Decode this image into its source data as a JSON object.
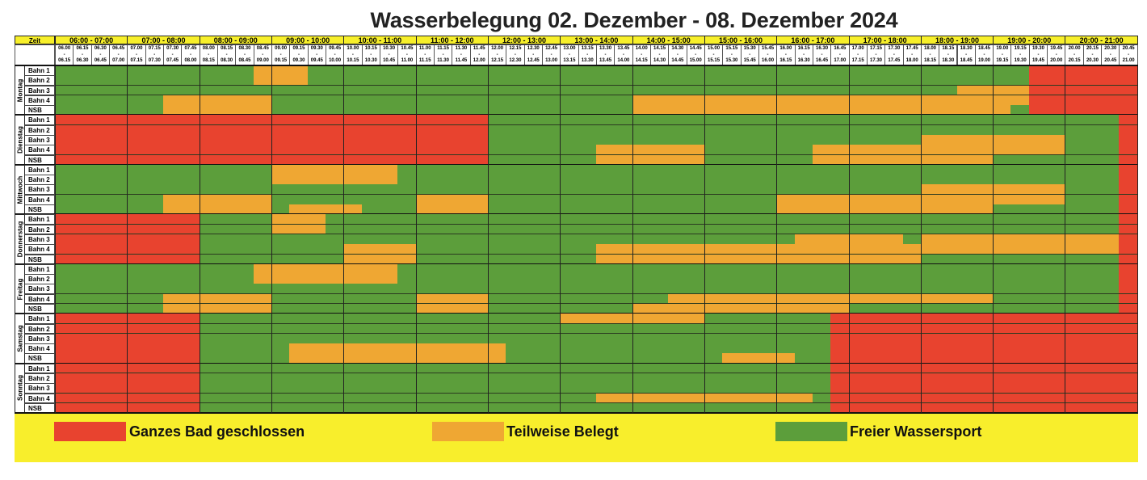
{
  "title": "Wasserbelegung 02. Dezember - 08. Dezember 2024",
  "header": {
    "zeit_label": "Zeit",
    "hours": [
      "06:00 - 07:00",
      "07:00 - 08:00",
      "08:00 - 09:00",
      "09:00 - 10:00",
      "10:00 - 11:00",
      "11:00 - 12:00",
      "12:00 - 13:00",
      "13:00 - 14:00",
      "14:00 - 15:00",
      "15:00 - 16:00",
      "16:00 - 17:00",
      "17:00 - 18:00",
      "18:00 - 19:00",
      "19:00 - 20:00",
      "20:00 - 21:00"
    ],
    "quarters": [
      [
        "06.00",
        "06.15"
      ],
      [
        "06.15",
        "06.30"
      ],
      [
        "06.30",
        "06.45"
      ],
      [
        "06.45",
        "07.00"
      ],
      [
        "07.00",
        "07.15"
      ],
      [
        "07.15",
        "07.30"
      ],
      [
        "07.30",
        "07.45"
      ],
      [
        "07.45",
        "08.00"
      ],
      [
        "08.00",
        "08.15"
      ],
      [
        "08.15",
        "08.30"
      ],
      [
        "08.30",
        "08.45"
      ],
      [
        "08.45",
        "09.00"
      ],
      [
        "09.00",
        "09.15"
      ],
      [
        "09.15",
        "09.30"
      ],
      [
        "09.30",
        "09.45"
      ],
      [
        "09.45",
        "10.00"
      ],
      [
        "10.00",
        "10.15"
      ],
      [
        "10.15",
        "10.30"
      ],
      [
        "10.30",
        "10.45"
      ],
      [
        "10.45",
        "11.00"
      ],
      [
        "11.00",
        "11.15"
      ],
      [
        "11.15",
        "11.30"
      ],
      [
        "11.30",
        "11.45"
      ],
      [
        "11.45",
        "12.00"
      ],
      [
        "12.00",
        "12.15"
      ],
      [
        "12.15",
        "12.30"
      ],
      [
        "12.30",
        "12.45"
      ],
      [
        "12.45",
        "13.00"
      ],
      [
        "13.00",
        "13.15"
      ],
      [
        "13.15",
        "13.30"
      ],
      [
        "13.30",
        "13.45"
      ],
      [
        "13.45",
        "14.00"
      ],
      [
        "14.00",
        "14.15"
      ],
      [
        "14.15",
        "14.30"
      ],
      [
        "14.30",
        "14.45"
      ],
      [
        "14.45",
        "15.00"
      ],
      [
        "15.00",
        "15.15"
      ],
      [
        "15.15",
        "15.30"
      ],
      [
        "15.30",
        "15.45"
      ],
      [
        "15.45",
        "16.00"
      ],
      [
        "16.00",
        "16.15"
      ],
      [
        "16.15",
        "16.30"
      ],
      [
        "16.30",
        "16.45"
      ],
      [
        "16.45",
        "17.00"
      ],
      [
        "17.00",
        "17.15"
      ],
      [
        "17.15",
        "17.30"
      ],
      [
        "17.30",
        "17.45"
      ],
      [
        "17.45",
        "18.00"
      ],
      [
        "18.00",
        "18.15"
      ],
      [
        "18.15",
        "18.30"
      ],
      [
        "18.30",
        "18.45"
      ],
      [
        "18.45",
        "19.00"
      ],
      [
        "19.00",
        "19.15"
      ],
      [
        "19.15",
        "19.30"
      ],
      [
        "19.30",
        "19.45"
      ],
      [
        "19.45",
        "20.00"
      ],
      [
        "20.00",
        "20.15"
      ],
      [
        "20.15",
        "20.30"
      ],
      [
        "20.30",
        "20.45"
      ],
      [
        "20.45",
        "21.00"
      ]
    ],
    "dash": "-"
  },
  "status_colors": {
    "R": "#e8432f",
    "O": "#efa733",
    "G": "#5c9e3b"
  },
  "days": [
    {
      "name": "Montag",
      "lanes": [
        {
          "label": "Bahn 1",
          "slots": "GGGG GGGG GGGO OOGG GGGG GGGG GGGG GGGG GGGG GGGG GGGG GGGG GGGG GGRR RRRR"
        },
        {
          "label": "Bahn 2",
          "slots": "GGGG GGGG GGGO OOGG GGGG GGGG GGGG GGGG GGGG GGGG GGGG GGGG GGGG GGRR RRRR"
        },
        {
          "label": "Bahn 3",
          "slots": "GGGG GGGG GGGG GGGG GGGG GGGG GGGG GGGG GGGG GGGG GGGG GGGG GGOO OORR RRRR"
        },
        {
          "label": "Bahn 4",
          "slots": "GGGG GGOO OOOO GGGG GGGG GGGG GGGG GGGG OOOO OOOO OOOO OOOO OOOO OORR RRRR"
        },
        {
          "label": "NSB",
          "slots": "GGGG GGOO OOOO GGGG GGGG GGGG GGGG GGGG OOOO OOOO OOOO OOOO OOOO OGRR RRRR"
        }
      ]
    },
    {
      "name": "Dienstag",
      "lanes": [
        {
          "label": "Bahn 1",
          "slots": "RRRR RRRR RRRR RRRR RRRR RRRR GGGG GGGG GGGG GGGG GGGG GGGG GGGG GGGG GGGR"
        },
        {
          "label": "Bahn 2",
          "slots": "RRRR RRRR RRRR RRRR RRRR RRRR GGGG GGGG GGGG GGGG GGGG GGGG GGGG GGGG GGGR"
        },
        {
          "label": "Bahn 3",
          "slots": "RRRR RRRR RRRR RRRR RRRR RRRR GGGG GGGG GGGG GGGG GGGG GGGG OOOO OOOO GGGR"
        },
        {
          "label": "Bahn 4",
          "slots": "RRRR RRRR RRRR RRRR RRRR RRRR GGGG GGOO OOOO GGGG GGOO OOOO OOOO OOOO GGGR"
        },
        {
          "label": "NSB",
          "slots": "RRRR RRRR RRRR RRRR RRRR RRRR GGGG GGOO OOOO GGGG GGOO OOOO OOOO GGGG GGGR"
        }
      ]
    },
    {
      "name": "Mittwoch",
      "lanes": [
        {
          "label": "Bahn 1",
          "slots": "GGGG GGGG GGGG OOOO OOOG GGGG GGGG GGGG GGGG GGGG GGGG GGGG GGGG GGGG GGGR"
        },
        {
          "label": "Bahn 2",
          "slots": "GGGG GGGG GGGG OOOO OOOG GGGG GGGG GGGG GGGG GGGG GGGG GGGG GGGG GGGG GGGR"
        },
        {
          "label": "Bahn 3",
          "slots": "GGGG GGGG GGGG GGGG GGGG GGGG GGGG GGGG GGGG GGGG GGGG GGGG OOOO OOOO GGGR"
        },
        {
          "label": "Bahn 4",
          "slots": "GGGG GGOO OOOO GGGG GGGG OOOO GGGG GGGG GGGG GGGG OOOO OOOO OOOO OOOO GGGR"
        },
        {
          "label": "NSB",
          "slots": "GGGG GGOO OOOO GOOO OGGG OOOO GGGG GGGG GGGG GGGG OOOO OOOO OOOO GGGG GGGR"
        }
      ]
    },
    {
      "name": "Donnerstag",
      "lanes": [
        {
          "label": "Bahn 1",
          "slots": "RRRR RRRR GGGG OOOG GGGG GGGG GGGG GGGG GGGG GGGG GGGG GGGG GGGG GGGG GGGR"
        },
        {
          "label": "Bahn 2",
          "slots": "RRRR RRRR GGGG OOOG GGGG GGGG GGGG GGGG GGGG GGGG GGGG GGGG GGGG GGGG GGGR"
        },
        {
          "label": "Bahn 3",
          "slots": "RRRR RRRR GGGG GGGG GGGG GGGG GGGG GGGG GGGG GGGG GOOO OOOG OOOO OOOO OOOR"
        },
        {
          "label": "Bahn 4",
          "slots": "RRRR RRRR GGGG GGGG OOOO GGGG GGGG GGOO OOOO OOOO OOOO OOOO OOOO OOOO OOOR"
        },
        {
          "label": "NSB",
          "slots": "RRRR RRRR GGGG GGGG OOOO GGGG GGGG GGOO OOOO OOOO OOOO OOOO GGGG GGGG GGGR"
        }
      ]
    },
    {
      "name": "Freitag",
      "lanes": [
        {
          "label": "Bahn 1",
          "slots": "GGGG GGGG GGGO OOOO OOOG GGGG GGGG GGGG GGGG GGGG GGGG GGGG GGGG GGGG GGGR"
        },
        {
          "label": "Bahn 2",
          "slots": "GGGG GGGG GGGO OOOO OOOG GGGG GGGG GGGG GGGG GGGG GGGG GGGG GGGG GGGG GGGR"
        },
        {
          "label": "Bahn 3",
          "slots": "GGGG GGGG GGGG GGGG GGGG GGGG GGGG GGGG GGGG GGGG GGGG GGGG GGGG GGGG GGGR"
        },
        {
          "label": "Bahn 4",
          "slots": "GGGG GGOO OOOO GGGG GGGG OOOO GGGG GGGG GGOO OOOO OOOO OOOO OOOO GGGG GGGR"
        },
        {
          "label": "NSB",
          "slots": "GGGG GGOO OOOO GGGG GGGG OOOO GGGG GGGG OOOO OOOO OOOO GGGG GGGG GGGG GGGR"
        }
      ]
    },
    {
      "name": "Samstag",
      "lanes": [
        {
          "label": "Bahn 1",
          "slots": "RRRR RRRR GGGG GGGG GGGG GGGG GGGG OOOO OOOO GGGG GGGR RRRR RRRR RRRR RRRR"
        },
        {
          "label": "Bahn 2",
          "slots": "RRRR RRRR GGGG GGGG GGGG GGGG GGGG GGGG GGGG GGGG GGGR RRRR RRRR RRRR RRRR"
        },
        {
          "label": "Bahn 3",
          "slots": "RRRR RRRR GGGG GGGG GGGG GGGG GGGG GGGG GGGG GGGG GGGR RRRR RRRR RRRR RRRR"
        },
        {
          "label": "Bahn 4",
          "slots": "RRRR RRRR GGGG GOOO OOOO OOOO OGGG GGGG GGGG GGGG GGGR RRRR RRRR RRRR RRRR"
        },
        {
          "label": "NSB",
          "slots": "RRRR RRRR GGGG GOOO OOOO OOOO OGGG GGGG GGGG GOOO OGGR RRRR RRRR RRRR RRRR"
        }
      ]
    },
    {
      "name": "Sonntag",
      "lanes": [
        {
          "label": "Bahn 1",
          "slots": "RRRR RRRR GGGG GGGG GGGG GGGG GGGG GGGG GGGG GGGG GGGR RRRR RRRR RRRR RRRR"
        },
        {
          "label": "Bahn 2",
          "slots": "RRRR RRRR GGGG GGGG GGGG GGGG GGGG GGGG GGGG GGGG GGGR RRRR RRRR RRRR RRRR"
        },
        {
          "label": "Bahn 3",
          "slots": "RRRR RRRR GGGG GGGG GGGG GGGG GGGG GGGG GGGG GGGG GGGR RRRR RRRR RRRR RRRR"
        },
        {
          "label": "Bahn 4",
          "slots": "RRRR RRRR GGGG GGGG GGGG GGGG GGGG GGOO OOOO OOOO OOGR RRRR RRRR RRRR RRRR"
        },
        {
          "label": "NSB",
          "slots": "RRRR RRRR GGGG GGGG GGGG GGGG GGGG GGGG GGGG GGGG GGGR RRRR RRRR RRRR RRRR"
        }
      ]
    }
  ],
  "legend": [
    {
      "key": "R",
      "label": "Ganzes Bad geschlossen"
    },
    {
      "key": "O",
      "label": "Teilweise Belegt"
    },
    {
      "key": "G",
      "label": "Freier Wassersport"
    }
  ]
}
